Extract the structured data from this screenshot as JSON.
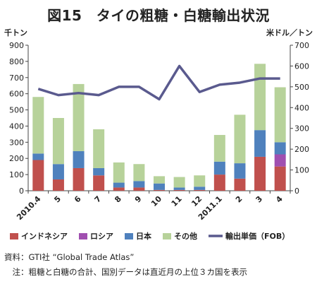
{
  "title": "図15　タイの粗糖・白糖輸出状況",
  "source_note": "資料：GTI社 “Global Trade Atlas”",
  "footnote": "　注：粗糖と白糖の合計、国別データは直近月の上位３カ国を表示",
  "colors": {
    "indonesia": "#c0504d",
    "russia": "#a04fb0",
    "japan": "#4f81bd",
    "other": "#b7d29a",
    "price": "#5a5a8e"
  },
  "chart_data": {
    "type": "bar",
    "stacked": true,
    "categories": [
      "2010.4",
      "5",
      "6",
      "7",
      "8",
      "9",
      "10",
      "11",
      "12",
      "2011.1",
      "2",
      "3",
      "4"
    ],
    "series": [
      {
        "name": "インドネシア",
        "key": "indonesia",
        "values": [
          190,
          70,
          140,
          95,
          20,
          20,
          5,
          5,
          5,
          100,
          75,
          210,
          150
        ]
      },
      {
        "name": "ロシア",
        "key": "russia",
        "values": [
          0,
          0,
          0,
          0,
          0,
          0,
          0,
          0,
          0,
          0,
          0,
          0,
          75
        ]
      },
      {
        "name": "日本",
        "key": "japan",
        "values": [
          40,
          95,
          105,
          45,
          30,
          40,
          40,
          15,
          20,
          80,
          95,
          165,
          75
        ]
      },
      {
        "name": "その他",
        "key": "other",
        "values": [
          350,
          285,
          415,
          240,
          125,
          105,
          45,
          65,
          70,
          165,
          300,
          410,
          340
        ]
      }
    ],
    "line": {
      "name": "輸出単価（FOB）",
      "key": "price",
      "values": [
        490,
        460,
        470,
        460,
        500,
        500,
        440,
        600,
        475,
        510,
        520,
        540,
        540
      ]
    },
    "y_left": {
      "label": "千トン",
      "min": 0,
      "max": 900,
      "ticks": [
        0,
        100,
        200,
        300,
        400,
        500,
        600,
        700,
        800,
        900
      ]
    },
    "y_right": {
      "label": "米ドル／トン",
      "min": 0,
      "max": 700,
      "ticks": [
        0,
        100,
        200,
        300,
        400,
        500,
        600,
        700
      ]
    },
    "grid": false,
    "legend": "bottom"
  }
}
